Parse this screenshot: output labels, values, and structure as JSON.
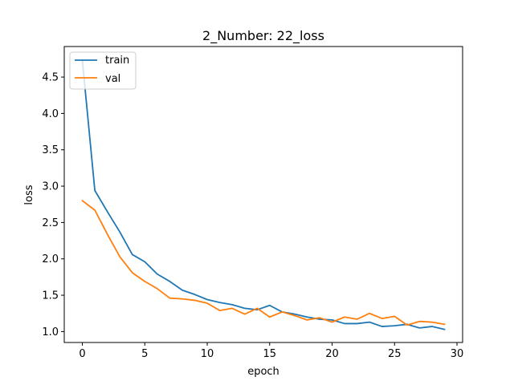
{
  "chart_data": {
    "type": "line",
    "title": "2_Number: 22_loss",
    "xlabel": "epoch",
    "ylabel": "loss",
    "xlim": [
      -1.45,
      30.45
    ],
    "ylim": [
      0.85,
      4.92
    ],
    "xticks": [
      0,
      5,
      10,
      15,
      20,
      25,
      30
    ],
    "yticks": [
      1.0,
      1.5,
      2.0,
      2.5,
      3.0,
      3.5,
      4.0,
      4.5
    ],
    "ytick_labels": [
      "1.0",
      "1.5",
      "2.0",
      "2.5",
      "3.0",
      "3.5",
      "4.0",
      "4.5"
    ],
    "grid": false,
    "legend": "top-left",
    "x": [
      0,
      1,
      2,
      3,
      4,
      5,
      6,
      7,
      8,
      9,
      10,
      11,
      12,
      13,
      14,
      15,
      16,
      17,
      18,
      19,
      20,
      21,
      22,
      23,
      24,
      25,
      26,
      27,
      28,
      29
    ],
    "series": [
      {
        "name": "train",
        "color": "#1f77b4",
        "values": [
          4.73,
          2.94,
          2.65,
          2.37,
          2.06,
          1.96,
          1.79,
          1.69,
          1.57,
          1.51,
          1.44,
          1.4,
          1.37,
          1.32,
          1.3,
          1.36,
          1.27,
          1.24,
          1.2,
          1.17,
          1.16,
          1.11,
          1.11,
          1.13,
          1.07,
          1.08,
          1.1,
          1.05,
          1.07,
          1.03
        ]
      },
      {
        "name": "val",
        "color": "#ff7f0e",
        "values": [
          2.8,
          2.67,
          2.34,
          2.03,
          1.81,
          1.69,
          1.59,
          1.46,
          1.45,
          1.43,
          1.39,
          1.29,
          1.32,
          1.24,
          1.32,
          1.2,
          1.27,
          1.22,
          1.16,
          1.19,
          1.13,
          1.2,
          1.17,
          1.25,
          1.18,
          1.21,
          1.09,
          1.14,
          1.13,
          1.1
        ]
      }
    ]
  }
}
